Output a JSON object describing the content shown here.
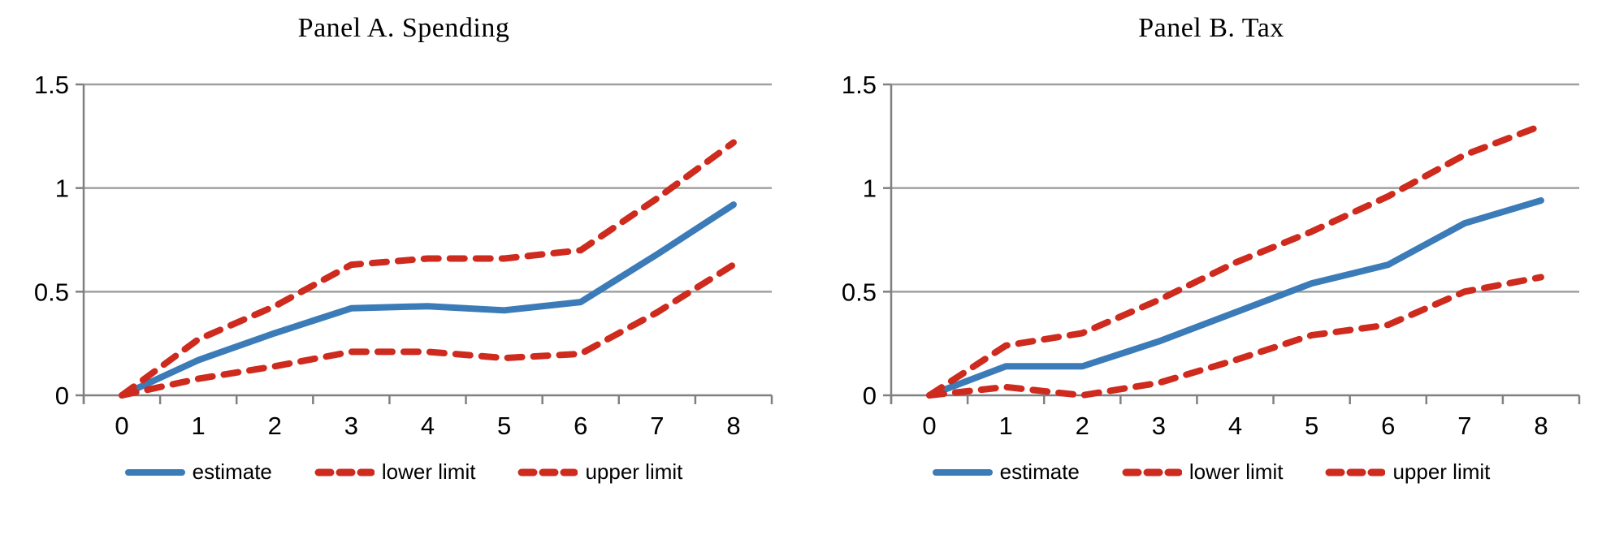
{
  "colors": {
    "estimate": "#3B7BB8",
    "limit": "#CE2A1E",
    "gridline": "#A0A0A0",
    "axis": "#808080",
    "text": "#000000",
    "background": "#FFFFFF"
  },
  "legend": {
    "items": [
      {
        "label": "estimate",
        "style": "solid",
        "color": "#3B7BB8"
      },
      {
        "label": "lower limit",
        "style": "dashed",
        "color": "#CE2A1E"
      },
      {
        "label": "upper limit",
        "style": "dashed",
        "color": "#CE2A1E"
      }
    ]
  },
  "chart_data": [
    {
      "type": "line",
      "title": "Panel A. Spending",
      "x": [
        0,
        1,
        2,
        3,
        4,
        5,
        6,
        7,
        8
      ],
      "xtick_labels": [
        "0",
        "1",
        "2",
        "3",
        "4",
        "5",
        "6",
        "7",
        "8"
      ],
      "ylim": [
        0,
        1.5
      ],
      "yticks": [
        0,
        0.5,
        1,
        1.5
      ],
      "ytick_labels": [
        "0",
        "0.5",
        "1",
        "1.5"
      ],
      "grid": true,
      "legend_position": "bottom",
      "series": [
        {
          "name": "estimate",
          "style": "solid",
          "color": "#3B7BB8",
          "values": [
            0,
            0.17,
            0.3,
            0.42,
            0.43,
            0.41,
            0.45,
            0.68,
            0.92
          ]
        },
        {
          "name": "lower limit",
          "style": "dashed",
          "color": "#CE2A1E",
          "values": [
            0,
            0.08,
            0.14,
            0.21,
            0.21,
            0.18,
            0.2,
            0.4,
            0.63
          ]
        },
        {
          "name": "upper limit",
          "style": "dashed",
          "color": "#CE2A1E",
          "values": [
            0,
            0.27,
            0.43,
            0.63,
            0.66,
            0.66,
            0.7,
            0.95,
            1.22
          ]
        }
      ]
    },
    {
      "type": "line",
      "title": "Panel B. Tax",
      "x": [
        0,
        1,
        2,
        3,
        4,
        5,
        6,
        7,
        8
      ],
      "xtick_labels": [
        "0",
        "1",
        "2",
        "3",
        "4",
        "5",
        "6",
        "7",
        "8"
      ],
      "ylim": [
        0,
        1.5
      ],
      "yticks": [
        0,
        0.5,
        1,
        1.5
      ],
      "ytick_labels": [
        "0",
        "0.5",
        "1",
        "1.5"
      ],
      "grid": true,
      "legend_position": "bottom",
      "series": [
        {
          "name": "estimate",
          "style": "solid",
          "color": "#3B7BB8",
          "values": [
            0,
            0.14,
            0.14,
            0.26,
            0.4,
            0.54,
            0.63,
            0.83,
            0.94
          ]
        },
        {
          "name": "lower limit",
          "style": "dashed",
          "color": "#CE2A1E",
          "values": [
            0,
            0.04,
            0.0,
            0.06,
            0.17,
            0.29,
            0.34,
            0.5,
            0.57
          ]
        },
        {
          "name": "upper limit",
          "style": "dashed",
          "color": "#CE2A1E",
          "values": [
            0,
            0.24,
            0.3,
            0.46,
            0.64,
            0.79,
            0.96,
            1.16,
            1.3
          ]
        }
      ]
    }
  ]
}
